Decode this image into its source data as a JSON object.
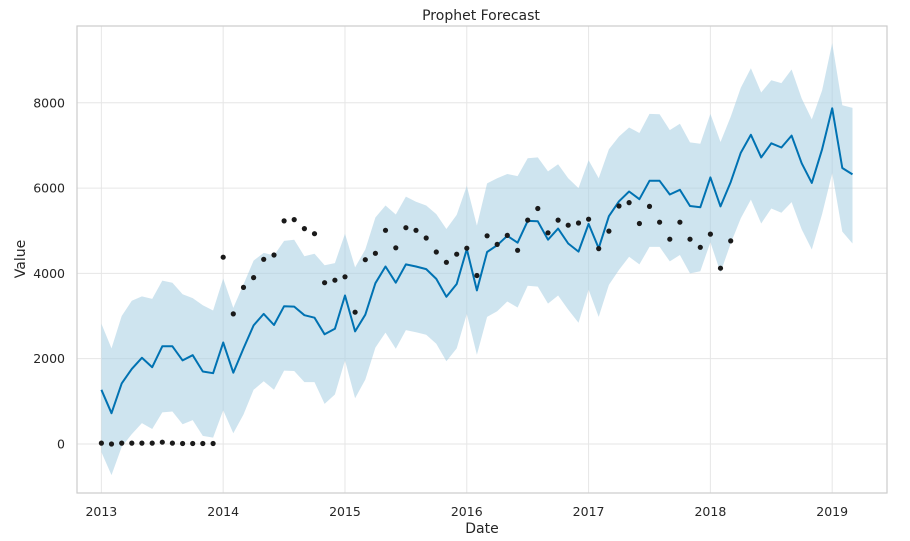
{
  "chart_data": {
    "type": "line",
    "title": "Prophet Forecast",
    "xlabel": "Date",
    "ylabel": "Value",
    "xlim": [
      2012.8,
      2019.45
    ],
    "ylim": [
      -1150,
      9800
    ],
    "grid": true,
    "x_ticks": [
      2013,
      2014,
      2015,
      2016,
      2017,
      2018,
      2019
    ],
    "x_tick_labels": [
      "2013",
      "2014",
      "2015",
      "2016",
      "2017",
      "2018",
      "2019"
    ],
    "y_ticks": [
      0,
      2000,
      4000,
      6000,
      8000
    ],
    "y_tick_labels": [
      "0",
      "2000",
      "4000",
      "6000",
      "8000"
    ],
    "colors": {
      "forecast_line": "#0072b2",
      "interval_band": "#a6cde2",
      "actual_points": "#1a1a1a"
    },
    "series": [
      {
        "type": "scatter",
        "x": [
          2013.0,
          2013.083,
          2013.167,
          2013.25,
          2013.333,
          2013.417,
          2013.5,
          2013.583,
          2013.667,
          2013.75,
          2013.833,
          2013.917,
          2014.0,
          2014.083,
          2014.167,
          2014.25,
          2014.333,
          2014.417,
          2014.5,
          2014.583,
          2014.667,
          2014.75,
          2014.833,
          2014.917,
          2015.0,
          2015.083,
          2015.167,
          2015.25,
          2015.333,
          2015.417,
          2015.5,
          2015.583,
          2015.667,
          2015.75,
          2015.833,
          2015.917,
          2016.0,
          2016.083,
          2016.167,
          2016.25,
          2016.333,
          2016.417,
          2016.5,
          2016.583,
          2016.667,
          2016.75,
          2016.833,
          2016.917,
          2017.0,
          2017.083,
          2017.167,
          2017.25,
          2017.333,
          2017.417,
          2017.5,
          2017.583,
          2017.667,
          2017.75,
          2017.833,
          2017.917,
          2018.0,
          2018.083,
          2018.167
        ],
        "y": [
          20,
          0,
          20,
          20,
          20,
          20,
          40,
          20,
          10,
          10,
          10,
          10,
          4380,
          3050,
          3670,
          3900,
          4330,
          4430,
          5230,
          5260,
          5050,
          4930,
          3780,
          3840,
          3920,
          3090,
          4320,
          4470,
          5010,
          4600,
          5070,
          5010,
          4830,
          4500,
          4260,
          4450,
          4590,
          3950,
          4880,
          4680,
          4890,
          4540,
          5250,
          5520,
          4950,
          5250,
          5130,
          5180,
          5270,
          4580,
          4990,
          5580,
          5660,
          5170,
          5570,
          5200,
          4800,
          5200,
          4800,
          4610,
          4920,
          4120,
          4760
        ]
      },
      {
        "type": "line",
        "x": [
          2013.0,
          2013.083,
          2013.167,
          2013.25,
          2013.333,
          2013.417,
          2013.5,
          2013.583,
          2013.667,
          2013.75,
          2013.833,
          2013.917,
          2014.0,
          2014.083,
          2014.167,
          2014.25,
          2014.333,
          2014.417,
          2014.5,
          2014.583,
          2014.667,
          2014.75,
          2014.833,
          2014.917,
          2015.0,
          2015.083,
          2015.167,
          2015.25,
          2015.333,
          2015.417,
          2015.5,
          2015.583,
          2015.667,
          2015.75,
          2015.833,
          2015.917,
          2016.0,
          2016.083,
          2016.167,
          2016.25,
          2016.333,
          2016.417,
          2016.5,
          2016.583,
          2016.667,
          2016.75,
          2016.833,
          2016.917,
          2017.0,
          2017.083,
          2017.167,
          2017.25,
          2017.333,
          2017.417,
          2017.5,
          2017.583,
          2017.667,
          2017.75,
          2017.833,
          2017.917,
          2018.0,
          2018.083,
          2018.167,
          2018.25,
          2018.333,
          2018.417,
          2018.5,
          2018.583,
          2018.667,
          2018.75,
          2018.833,
          2018.917,
          2019.0,
          2019.083,
          2019.167
        ],
        "y": [
          1270,
          720,
          1420,
          1760,
          2020,
          1800,
          2290,
          2290,
          1960,
          2080,
          1700,
          1660,
          2380,
          1670,
          2240,
          2780,
          3050,
          2790,
          3230,
          3220,
          3020,
          2960,
          2570,
          2700,
          3480,
          2640,
          3030,
          3770,
          4160,
          3780,
          4210,
          4160,
          4100,
          3870,
          3450,
          3750,
          4570,
          3600,
          4500,
          4660,
          4880,
          4720,
          5230,
          5220,
          4790,
          5050,
          4700,
          4510,
          5160,
          4590,
          5340,
          5690,
          5920,
          5740,
          6170,
          6170,
          5850,
          5960,
          5580,
          5550,
          6250,
          5570,
          6140,
          6830,
          7250,
          6720,
          7050,
          6950,
          7230,
          6580,
          6120,
          6910,
          7870,
          6470,
          6320
        ]
      },
      {
        "type": "area",
        "x": [
          2013.0,
          2013.083,
          2013.167,
          2013.25,
          2013.333,
          2013.417,
          2013.5,
          2013.583,
          2013.667,
          2013.75,
          2013.833,
          2013.917,
          2014.0,
          2014.083,
          2014.167,
          2014.25,
          2014.333,
          2014.417,
          2014.5,
          2014.583,
          2014.667,
          2014.75,
          2014.833,
          2014.917,
          2015.0,
          2015.083,
          2015.167,
          2015.25,
          2015.333,
          2015.417,
          2015.5,
          2015.583,
          2015.667,
          2015.75,
          2015.833,
          2015.917,
          2016.0,
          2016.083,
          2016.167,
          2016.25,
          2016.333,
          2016.417,
          2016.5,
          2016.583,
          2016.667,
          2016.75,
          2016.833,
          2016.917,
          2017.0,
          2017.083,
          2017.167,
          2017.25,
          2017.333,
          2017.417,
          2017.5,
          2017.583,
          2017.667,
          2017.75,
          2017.833,
          2017.917,
          2018.0,
          2018.083,
          2018.167,
          2018.25,
          2018.333,
          2018.417,
          2018.5,
          2018.583,
          2018.667,
          2018.75,
          2018.833,
          2018.917,
          2019.0,
          2019.083,
          2019.167
        ],
        "upper": [
          2820,
          2240,
          3000,
          3360,
          3460,
          3400,
          3830,
          3780,
          3510,
          3420,
          3250,
          3130,
          3880,
          3190,
          3740,
          4300,
          4480,
          4420,
          4760,
          4790,
          4400,
          4460,
          4190,
          4240,
          4930,
          4140,
          4560,
          5310,
          5590,
          5380,
          5800,
          5680,
          5590,
          5390,
          5040,
          5370,
          6050,
          5120,
          6110,
          6230,
          6330,
          6280,
          6700,
          6720,
          6390,
          6560,
          6230,
          6000,
          6650,
          6230,
          6910,
          7210,
          7420,
          7290,
          7740,
          7730,
          7360,
          7510,
          7070,
          7040,
          7740,
          7080,
          7670,
          8350,
          8810,
          8240,
          8530,
          8460,
          8780,
          8100,
          7610,
          8290,
          9400,
          7940,
          7880
        ],
        "lower": [
          -190,
          -730,
          -70,
          230,
          490,
          350,
          740,
          760,
          460,
          560,
          190,
          150,
          790,
          250,
          690,
          1270,
          1470,
          1270,
          1720,
          1710,
          1450,
          1450,
          940,
          1160,
          1960,
          1070,
          1510,
          2260,
          2610,
          2230,
          2670,
          2620,
          2560,
          2350,
          1940,
          2240,
          3050,
          2090,
          2980,
          3110,
          3340,
          3200,
          3710,
          3690,
          3290,
          3480,
          3150,
          2840,
          3620,
          2980,
          3730,
          4080,
          4390,
          4210,
          4620,
          4620,
          4280,
          4430,
          4000,
          4050,
          4730,
          4020,
          4700,
          5290,
          5730,
          5170,
          5520,
          5420,
          5670,
          5030,
          4560,
          5390,
          6350,
          4980,
          4700
        ]
      }
    ]
  }
}
